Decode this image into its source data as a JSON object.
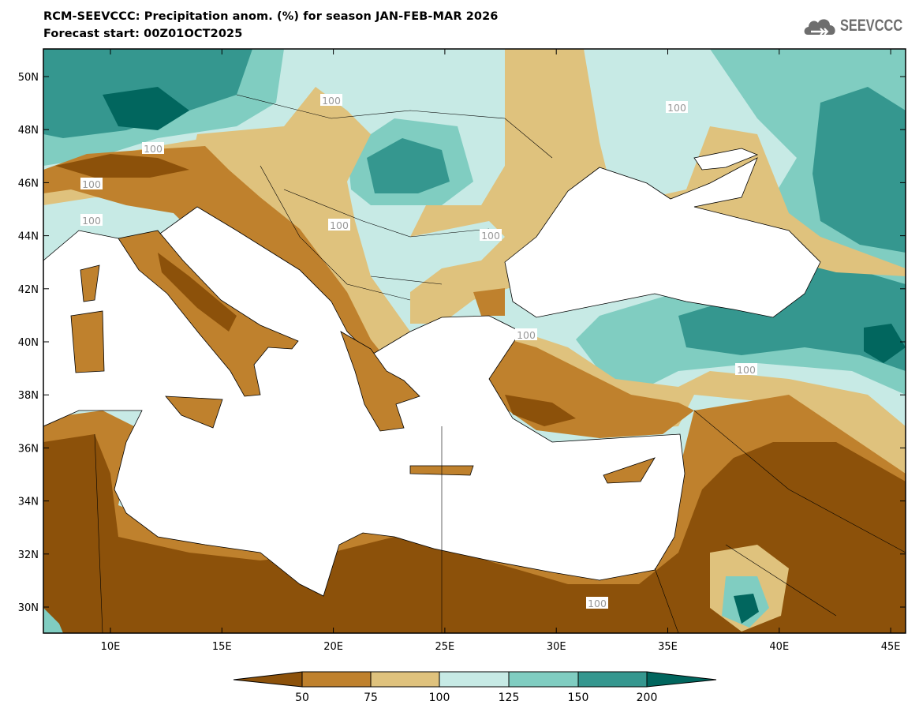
{
  "header": {
    "title": "RCM-SEEVCCC: Precipitation anom. (%) for season JAN-FEB-MAR 2026",
    "subtitle": "Forecast start: 00Z01OCT2025",
    "logo_text": "SEEVCCC",
    "logo_icon": "cloud-icon"
  },
  "map": {
    "lat_labels": [
      "50N",
      "48N",
      "46N",
      "44N",
      "42N",
      "40N",
      "38N",
      "36N",
      "34N",
      "32N",
      "30N"
    ],
    "lon_labels": [
      "10E",
      "15E",
      "20E",
      "25E",
      "30E",
      "35E",
      "40E",
      "45E"
    ],
    "contour_label": "100",
    "contour_label_count": 10
  },
  "colorbar": {
    "labels": [
      "50",
      "75",
      "100",
      "125",
      "150",
      "200"
    ],
    "colors": {
      "lt50": "#8c510a",
      "c50_75": "#bf812d",
      "c75_100": "#dfc27d",
      "c100_125": "#c7eae5",
      "c125_150": "#80cdc1",
      "c150_200": "#35978f",
      "gt200": "#01665e"
    }
  }
}
